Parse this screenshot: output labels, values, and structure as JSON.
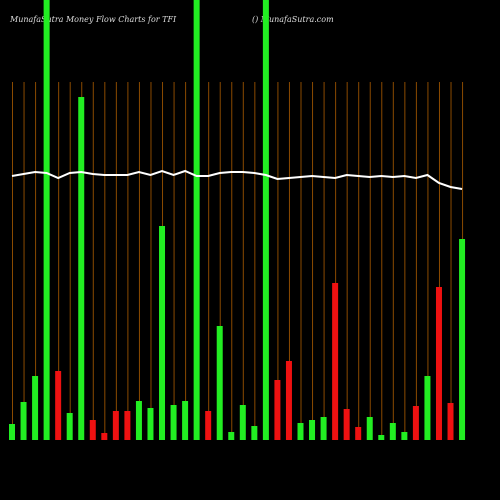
{
  "chart_data": {
    "type": "bar",
    "title": "MunafaSutra  Money Flow  Charts for TFI",
    "subtitle": "() MunafaSutra.com",
    "categories": [
      null,
      null,
      null,
      null,
      null,
      null,
      null,
      null,
      null,
      null,
      null,
      null,
      null,
      null,
      null,
      null,
      null,
      null,
      null,
      null,
      null,
      null,
      null,
      null,
      null,
      null,
      null,
      null,
      null,
      null,
      null,
      null,
      null,
      null,
      null,
      null,
      null,
      null,
      null,
      null
    ],
    "values": [
      16,
      38,
      64,
      440,
      69,
      27,
      343,
      20,
      7,
      29,
      29,
      39,
      32,
      214,
      35,
      39,
      440,
      29,
      114,
      8,
      35,
      14,
      440,
      60,
      79,
      17,
      20,
      23,
      157,
      31,
      13,
      23,
      5,
      17,
      8,
      34,
      64,
      153,
      37,
      201
    ],
    "colors": [
      "#22ee22",
      "#22ee22",
      "#22ee22",
      "#22ee22",
      "#ee1111",
      "#22ee22",
      "#22ee22",
      "#ee1111",
      "#ee1111",
      "#ee1111",
      "#ee1111",
      "#22ee22",
      "#22ee22",
      "#22ee22",
      "#22ee22",
      "#22ee22",
      "#22ee22",
      "#ee1111",
      "#22ee22",
      "#22ee22",
      "#22ee22",
      "#22ee22",
      "#22ee22",
      "#ee1111",
      "#ee1111",
      "#22ee22",
      "#22ee22",
      "#22ee22",
      "#ee1111",
      "#ee1111",
      "#ee1111",
      "#22ee22",
      "#22ee22",
      "#22ee22",
      "#22ee22",
      "#ee1111",
      "#22ee22",
      "#ee1111",
      "#ee1111",
      "#22ee22"
    ],
    "line": {
      "color": "#ffffff",
      "values": [
        264,
        266,
        268,
        267,
        262,
        267,
        268,
        266,
        265,
        265,
        265,
        268,
        265,
        269,
        265,
        269,
        264,
        264,
        267,
        268,
        268,
        267,
        265,
        261,
        262,
        263,
        264,
        263,
        262,
        265,
        264,
        263,
        264,
        263,
        264,
        262,
        265,
        257,
        253,
        251
      ]
    },
    "ylim": [
      0,
      440
    ],
    "grid": true,
    "grid_color": "#8a4a00"
  }
}
